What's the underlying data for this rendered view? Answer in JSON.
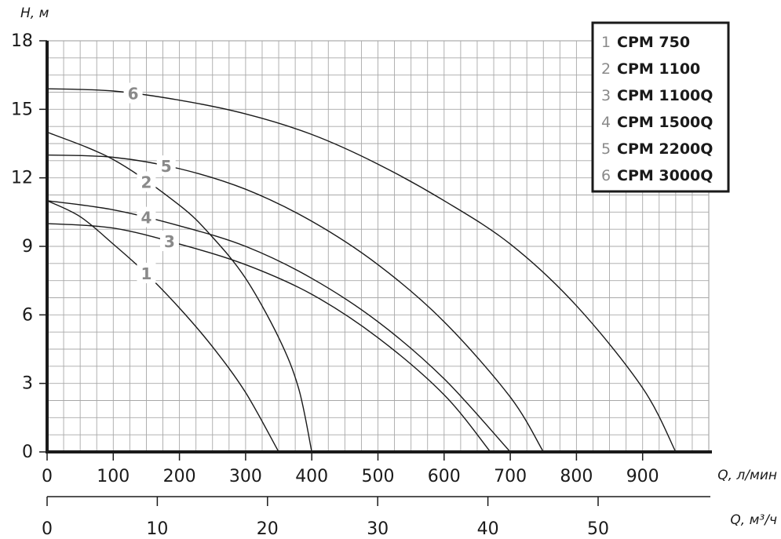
{
  "chart_data": {
    "type": "line",
    "y_axis": {
      "label": "H, м",
      "min": 0,
      "max": 18,
      "ticks": [
        0,
        3,
        6,
        9,
        12,
        15,
        18
      ]
    },
    "x_axis": {
      "label": "Q, л/мин",
      "min": 0,
      "max": 1000,
      "ticks": [
        0,
        100,
        200,
        300,
        400,
        500,
        600,
        700,
        800,
        900
      ]
    },
    "x_axis_secondary": {
      "label": "Q, м³/ч",
      "ticks": [
        0,
        10,
        20,
        30,
        40,
        50
      ]
    },
    "grid": true,
    "legend_position": "top-right",
    "series": [
      {
        "id": "1",
        "name": "CPM 750",
        "x": [
          0,
          50,
          100,
          150,
          200,
          250,
          300,
          350
        ],
        "y": [
          11,
          10.3,
          9.1,
          7.8,
          6.3,
          4.6,
          2.6,
          0
        ]
      },
      {
        "id": "2",
        "name": "CPM 1100",
        "x": [
          0,
          100,
          200,
          250,
          300,
          350,
          380,
          400
        ],
        "y": [
          14,
          12.8,
          10.8,
          9.4,
          7.6,
          5.0,
          2.8,
          0
        ]
      },
      {
        "id": "3",
        "name": "CPM 1100Q",
        "x": [
          0,
          100,
          200,
          300,
          400,
          500,
          600,
          670
        ],
        "y": [
          10,
          9.8,
          9.1,
          8.2,
          6.9,
          5.0,
          2.5,
          0
        ]
      },
      {
        "id": "4",
        "name": "CPM 1500Q",
        "x": [
          0,
          100,
          200,
          300,
          400,
          500,
          600,
          700
        ],
        "y": [
          11,
          10.6,
          9.9,
          9.0,
          7.6,
          5.7,
          3.2,
          0
        ]
      },
      {
        "id": "5",
        "name": "CPM 2200Q",
        "x": [
          0,
          100,
          200,
          300,
          400,
          500,
          600,
          700,
          750
        ],
        "y": [
          13,
          12.9,
          12.4,
          11.5,
          10.1,
          8.2,
          5.7,
          2.4,
          0
        ]
      },
      {
        "id": "6",
        "name": "CPM 3000Q",
        "x": [
          0,
          100,
          200,
          300,
          400,
          500,
          600,
          700,
          800,
          900,
          950
        ],
        "y": [
          15.9,
          15.8,
          15.4,
          14.8,
          13.9,
          12.6,
          11.0,
          9.1,
          6.4,
          2.8,
          0
        ]
      }
    ]
  }
}
